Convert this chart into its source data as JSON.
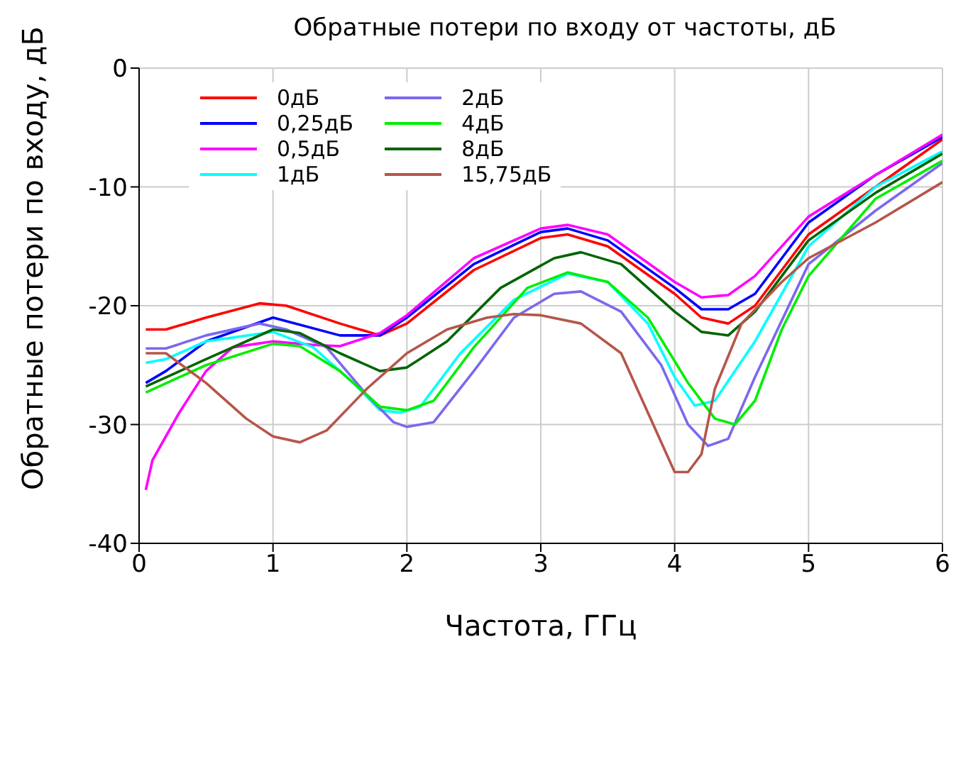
{
  "chart_data": {
    "type": "line",
    "title": "Обратные потери по входу от частоты, дБ",
    "xlabel": "Частота, ГГц",
    "ylabel": "Обратные потери по входу, дБ",
    "xlim": [
      0,
      6
    ],
    "xticks": [
      0,
      1,
      2,
      3,
      4,
      5,
      6
    ],
    "ylim": [
      -40,
      0
    ],
    "yticks": [
      -40,
      -30,
      -20,
      -10,
      0
    ],
    "grid": true,
    "legend": "top left",
    "marker": "none",
    "line_style": "solid",
    "series": [
      {
        "name": "0дБ",
        "color": "#ff0000",
        "x": [
          0.05,
          0.2,
          0.5,
          0.9,
          1.1,
          1.5,
          1.8,
          2,
          2.5,
          3,
          3.2,
          3.5,
          4,
          4.2,
          4.4,
          4.6,
          5,
          5.5,
          6
        ],
        "values": [
          -22,
          -22,
          -21,
          -19.8,
          -20,
          -21.5,
          -22.5,
          -21.5,
          -17,
          -14.3,
          -14,
          -15,
          -19,
          -21,
          -21.5,
          -20,
          -14,
          -10,
          -6
        ]
      },
      {
        "name": "0,25дБ",
        "color": "#0000ff",
        "x": [
          0.05,
          0.2,
          0.5,
          1,
          1.5,
          1.8,
          2,
          2.5,
          3,
          3.2,
          3.5,
          4,
          4.2,
          4.4,
          4.6,
          5,
          5.5,
          6
        ],
        "values": [
          -26.5,
          -25.5,
          -23,
          -21,
          -22.5,
          -22.5,
          -21,
          -16.5,
          -13.8,
          -13.5,
          -14.5,
          -18.5,
          -20.3,
          -20.3,
          -19,
          -13,
          -9,
          -5.8
        ]
      },
      {
        "name": "0,5дБ",
        "color": "#ff00ff",
        "x": [
          0.05,
          0.1,
          0.3,
          0.5,
          0.7,
          1,
          1.3,
          1.5,
          1.8,
          2,
          2.5,
          3,
          3.2,
          3.5,
          4,
          4.2,
          4.4,
          4.6,
          5,
          5.5,
          6
        ],
        "values": [
          -35.5,
          -33,
          -29,
          -25.5,
          -23.5,
          -23,
          -23.3,
          -23.4,
          -22.3,
          -20.8,
          -16,
          -13.5,
          -13.2,
          -14,
          -18,
          -19.3,
          -19.1,
          -17.5,
          -12.5,
          -9,
          -5.6
        ]
      },
      {
        "name": "1дБ",
        "color": "#00ffff",
        "x": [
          0.05,
          0.2,
          0.5,
          1,
          1.3,
          1.6,
          1.8,
          1.95,
          2.1,
          2.4,
          2.8,
          3.2,
          3.5,
          3.8,
          4,
          4.15,
          4.3,
          4.6,
          5,
          5.5,
          6
        ],
        "values": [
          -24.8,
          -24.5,
          -23,
          -22.2,
          -23.5,
          -26.5,
          -28.8,
          -29,
          -28.5,
          -24,
          -19.5,
          -17.3,
          -18,
          -21.5,
          -26,
          -28.4,
          -28,
          -23,
          -15,
          -10,
          -7
        ]
      },
      {
        "name": "2дБ",
        "color": "#7b68ee",
        "x": [
          0.05,
          0.2,
          0.5,
          0.9,
          1.1,
          1.4,
          1.7,
          1.9,
          2,
          2.2,
          2.5,
          2.8,
          3.1,
          3.3,
          3.6,
          3.9,
          4.1,
          4.25,
          4.4,
          4.6,
          5,
          5.5,
          6
        ],
        "values": [
          -23.6,
          -23.6,
          -22.5,
          -21.5,
          -22,
          -23.5,
          -27.5,
          -29.8,
          -30.2,
          -29.8,
          -25.5,
          -21,
          -19,
          -18.8,
          -20.5,
          -25,
          -30,
          -31.8,
          -31.2,
          -26,
          -16.5,
          -12,
          -8
        ]
      },
      {
        "name": "4дБ",
        "color": "#00ee00",
        "x": [
          0.05,
          0.5,
          1,
          1.2,
          1.5,
          1.8,
          2,
          2.2,
          2.5,
          2.9,
          3.2,
          3.5,
          3.8,
          4.1,
          4.3,
          4.45,
          4.6,
          4.8,
          5,
          5.5,
          6
        ],
        "values": [
          -27.3,
          -25,
          -23.2,
          -23.4,
          -25.5,
          -28.5,
          -28.8,
          -28,
          -23.5,
          -18.5,
          -17.2,
          -18,
          -21,
          -26.5,
          -29.5,
          -30,
          -28,
          -22,
          -17.5,
          -11,
          -7.8
        ]
      },
      {
        "name": "8дБ",
        "color": "#006400",
        "x": [
          0.05,
          0.5,
          1,
          1.2,
          1.5,
          1.8,
          2,
          2.3,
          2.7,
          3.1,
          3.3,
          3.6,
          4,
          4.2,
          4.4,
          4.6,
          5,
          5.5,
          6
        ],
        "values": [
          -26.8,
          -24.5,
          -22,
          -22.3,
          -24,
          -25.5,
          -25.2,
          -23,
          -18.5,
          -16,
          -15.5,
          -16.5,
          -20.5,
          -22.2,
          -22.5,
          -20.5,
          -14.5,
          -10.5,
          -7.2
        ]
      },
      {
        "name": "15,75дБ",
        "color": "#b5564a",
        "x": [
          0.05,
          0.2,
          0.5,
          0.8,
          1,
          1.2,
          1.4,
          1.7,
          2,
          2.3,
          2.6,
          2.8,
          3,
          3.3,
          3.6,
          3.8,
          4,
          4.1,
          4.2,
          4.3,
          4.5,
          4.8,
          5,
          5.5,
          6
        ],
        "values": [
          -24,
          -24,
          -26.5,
          -29.5,
          -31,
          -31.5,
          -30.5,
          -27,
          -24,
          -22,
          -21,
          -20.7,
          -20.8,
          -21.5,
          -24,
          -29,
          -34,
          -34,
          -32.5,
          -27,
          -21.5,
          -18,
          -16,
          -13,
          -9.6
        ]
      }
    ]
  }
}
